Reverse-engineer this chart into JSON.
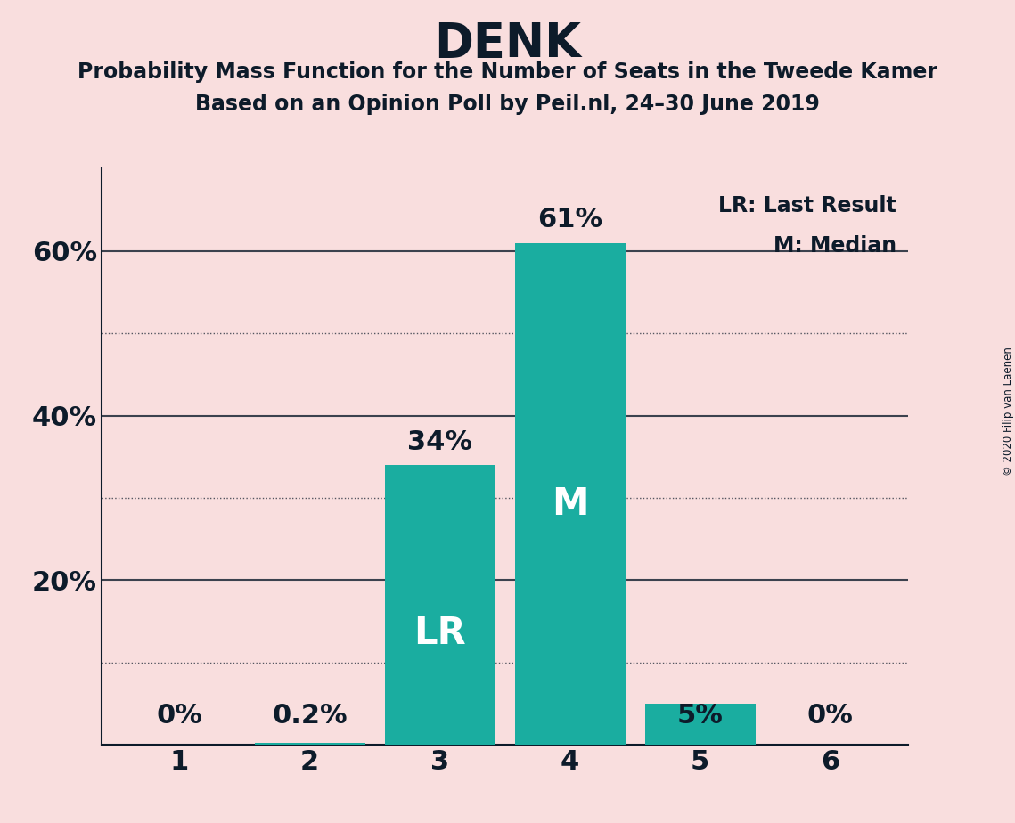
{
  "title": "DENK",
  "subtitle1": "Probability Mass Function for the Number of Seats in the Tweede Kamer",
  "subtitle2": "Based on an Opinion Poll by Peil.nl, 24–30 June 2019",
  "copyright": "© 2020 Filip van Laenen",
  "categories": [
    1,
    2,
    3,
    4,
    5,
    6
  ],
  "values": [
    0.0,
    0.2,
    34.0,
    61.0,
    5.0,
    0.0
  ],
  "bar_color": "#1aada0",
  "background_color": "#f9dede",
  "text_color": "#0d1b2a",
  "bar_label_color_outside": "#0d1b2a",
  "bar_label_color_inside": "#ffffff",
  "last_result_seat": 3,
  "median_seat": 4,
  "lr_label": "LR",
  "m_label": "M",
  "legend_lr": "LR: Last Result",
  "legend_m": "M: Median",
  "ylim": [
    0,
    70
  ],
  "ytick_positions": [
    0,
    20,
    40,
    60
  ],
  "ytick_labels": [
    "",
    "20%",
    "40%",
    "60%"
  ],
  "dotted_yticks": [
    10,
    30,
    50
  ],
  "solid_yticks": [
    20,
    40,
    60
  ]
}
